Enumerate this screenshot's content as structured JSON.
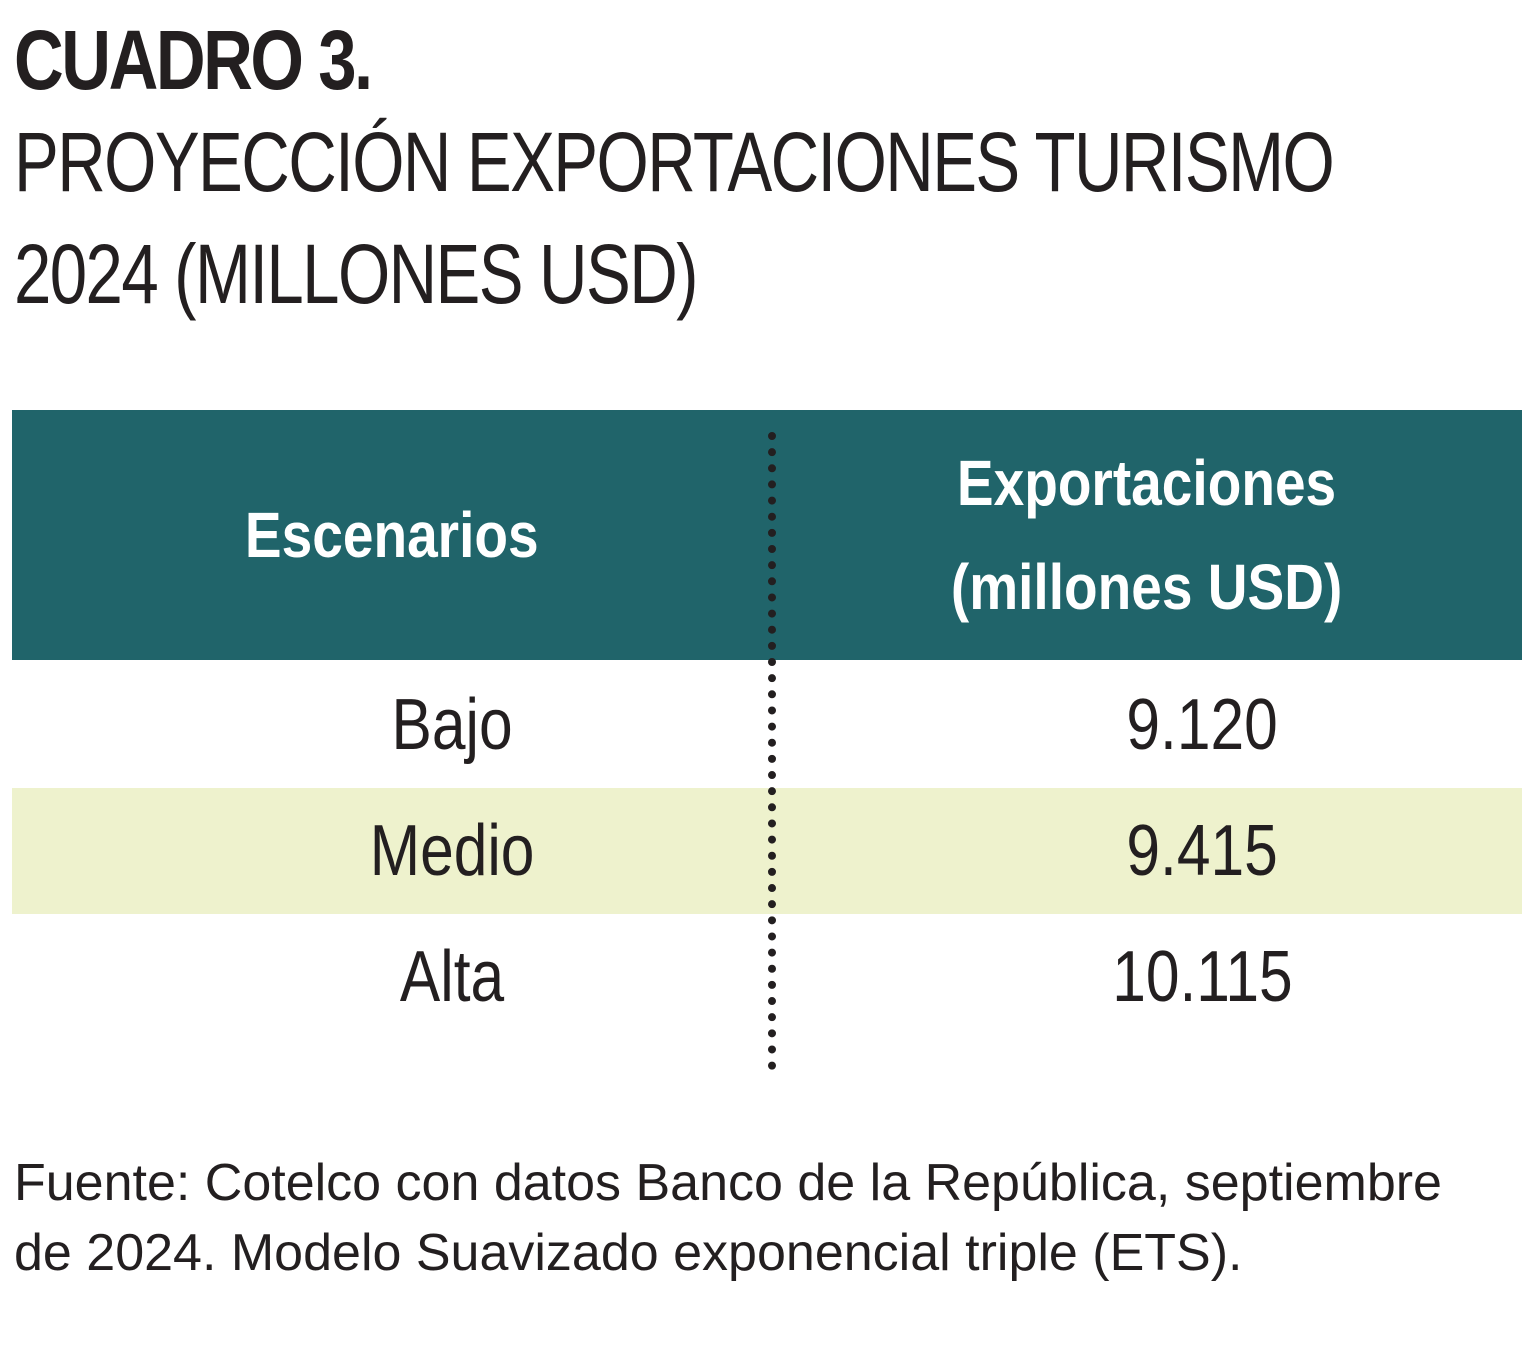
{
  "title": {
    "label": "CUADRO 3.",
    "line1": "PROYECCIÓN EXPORTACIONES TURISMO",
    "line2": "2024 (MILLONES USD)"
  },
  "table": {
    "headers": {
      "scenarios": "Escenarios",
      "exports_line1": "Exportaciones",
      "exports_line2": "(millones USD)"
    },
    "rows": [
      {
        "scenario": "Bajo",
        "value": "9.120"
      },
      {
        "scenario": "Medio",
        "value": "9.415"
      },
      {
        "scenario": "Alta",
        "value": "10.115"
      }
    ]
  },
  "source": {
    "text": "Fuente: Cotelco con datos Banco de la República, septiembre de 2024. Modelo Suavizado exponencial triple (ETS)."
  },
  "colors": {
    "header_bg": "#20646a",
    "shaded_row": "#eef2cd",
    "text": "#231f20"
  }
}
